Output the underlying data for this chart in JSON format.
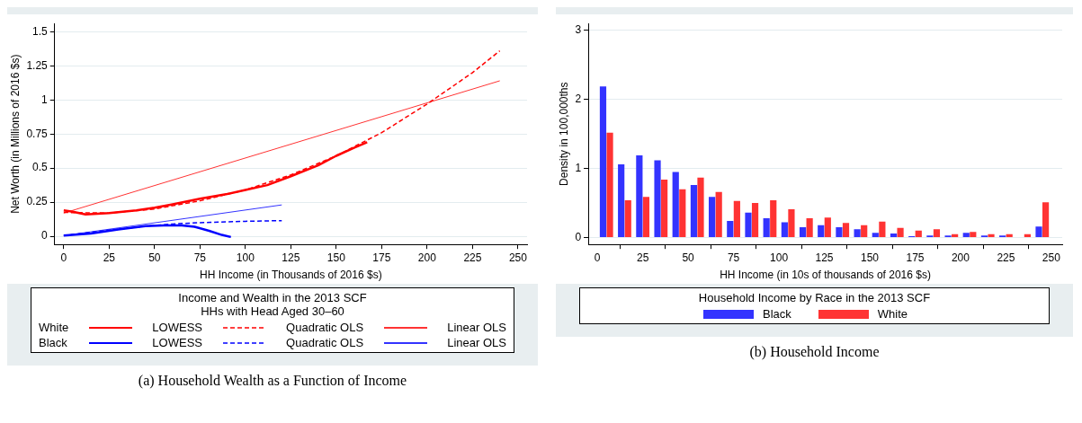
{
  "chart_data": [
    {
      "type": "line",
      "title": "(a) Household Wealth as a Function of Income",
      "xlabel": "HH Income (in Thousands of 2016 $s)",
      "ylabel": "Net Worth (in Millions of 2016 $s)",
      "legend_title": "Income and Wealth in the 2013 SCF\nHHs with Head Aged 30–60",
      "annotations": [
        "White",
        "Black"
      ],
      "legend": "bottom",
      "grid": "y",
      "marker": "none",
      "xlim": [
        -5,
        255
      ],
      "ylim": [
        -0.06,
        1.56
      ],
      "xticks": [
        0,
        25,
        50,
        75,
        100,
        125,
        150,
        175,
        200,
        225,
        250
      ],
      "yticks": [
        0,
        0.25,
        0.5,
        0.75,
        1,
        1.25,
        1.5
      ],
      "series": [
        {
          "name": "LOWESS",
          "color": "#ff0000",
          "line_style": "solid",
          "x": [
            0,
            5,
            12,
            25,
            40,
            50,
            60,
            75,
            90,
            100,
            112,
            125,
            140,
            150,
            160,
            167
          ],
          "values": [
            0.19,
            0.18,
            0.16,
            0.17,
            0.19,
            0.21,
            0.235,
            0.275,
            0.31,
            0.34,
            0.375,
            0.44,
            0.52,
            0.59,
            0.65,
            0.69
          ]
        },
        {
          "name": "Quadratic OLS",
          "color": "#ff0000",
          "line_style": "dashed",
          "x": [
            0,
            25,
            50,
            75,
            100,
            125,
            150,
            175,
            200,
            225,
            240
          ],
          "values": [
            0.175,
            0.17,
            0.2,
            0.26,
            0.34,
            0.45,
            0.59,
            0.76,
            0.97,
            1.2,
            1.36
          ]
        },
        {
          "name": "Linear OLS",
          "color": "#ff3333",
          "line_style": "solid",
          "x": [
            0,
            240
          ],
          "values": [
            0.17,
            1.14
          ]
        },
        {
          "name": "LOWESS",
          "color": "#0000ff",
          "line_style": "solid",
          "x": [
            0,
            15,
            30,
            45,
            55,
            65,
            72,
            80,
            87,
            92
          ],
          "values": [
            0.005,
            0.02,
            0.05,
            0.075,
            0.08,
            0.08,
            0.07,
            0.04,
            0.01,
            -0.005
          ]
        },
        {
          "name": "Quadratic OLS",
          "color": "#0000ff",
          "line_style": "dashed",
          "x": [
            0,
            25,
            50,
            60,
            75,
            100,
            120
          ],
          "values": [
            0.005,
            0.045,
            0.08,
            0.09,
            0.1,
            0.11,
            0.115
          ]
        },
        {
          "name": "Linear OLS",
          "color": "#3333ff",
          "line_style": "solid",
          "x": [
            0,
            120
          ],
          "values": [
            0.005,
            0.23
          ]
        }
      ]
    },
    {
      "type": "bar",
      "title": "(b) Household Income",
      "xlabel": "HH Income (in 10s of thousands of 2016 $s)",
      "ylabel": "Density in 100,000ths",
      "legend_title": "Household Income by Race in the 2013 SCF",
      "legend": "bottom",
      "grid": "y",
      "xlim": [
        -5,
        256
      ],
      "ylim": [
        -0.1,
        3.1
      ],
      "xticks": [
        0,
        25,
        50,
        75,
        100,
        125,
        150,
        175,
        200,
        225,
        250
      ],
      "yticks": [
        0,
        1,
        2,
        3
      ],
      "x": [
        5,
        15,
        25,
        35,
        45,
        55,
        65,
        75,
        85,
        95,
        105,
        115,
        125,
        135,
        145,
        155,
        165,
        175,
        185,
        195,
        205,
        215,
        225,
        235,
        245
      ],
      "series": [
        {
          "name": "Black",
          "color": "#3333ff",
          "values": [
            2.19,
            1.06,
            1.19,
            1.12,
            0.95,
            0.76,
            0.59,
            0.24,
            0.36,
            0.28,
            0.22,
            0.15,
            0.18,
            0.15,
            0.12,
            0.07,
            0.06,
            0.02,
            0.03,
            0.03,
            0.07,
            0.03,
            0.03,
            null,
            0.16
          ]
        },
        {
          "name": "White",
          "color": "#ff3333",
          "values": [
            1.52,
            0.54,
            0.59,
            0.84,
            0.7,
            0.87,
            0.66,
            0.53,
            0.5,
            0.54,
            0.41,
            0.28,
            0.29,
            0.21,
            0.18,
            0.23,
            0.14,
            0.1,
            0.12,
            0.05,
            0.08,
            0.05,
            0.05,
            0.05,
            0.51
          ]
        }
      ]
    }
  ]
}
